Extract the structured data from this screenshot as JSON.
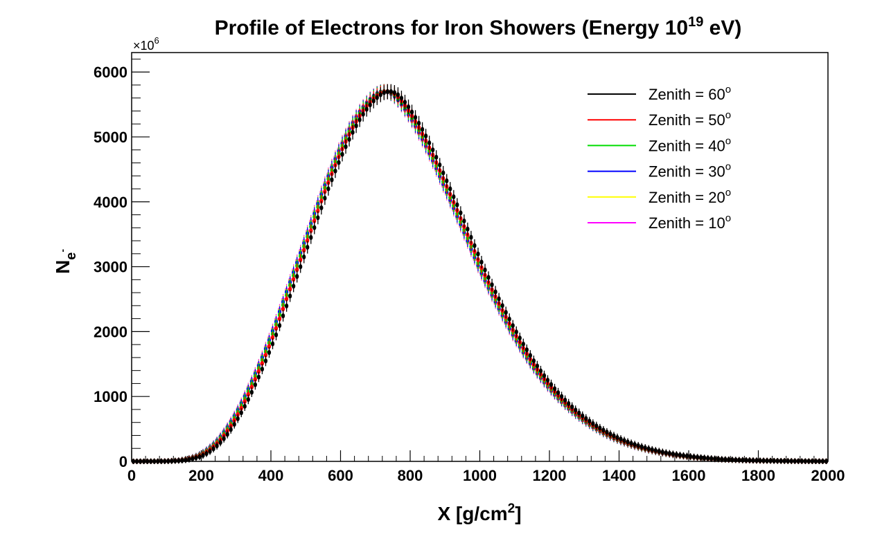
{
  "chart_data": {
    "type": "scatter",
    "title": {
      "main": "Profile of Electrons for Iron Showers (Energy 10",
      "sup": "19",
      "tail": " eV)"
    },
    "xlabel": {
      "main": "X [g/cm",
      "sup": "2",
      "tail": "]"
    },
    "ylabel": {
      "main": "N",
      "sub": "e",
      "subsup": "-"
    },
    "y_multiplier": {
      "main": "×10",
      "sup": "6"
    },
    "xlim": [
      0,
      2000
    ],
    "ylim": [
      0,
      6300
    ],
    "x_ticks": [
      0,
      200,
      400,
      600,
      800,
      1000,
      1200,
      1400,
      1600,
      1800,
      2000
    ],
    "x_tick_labels": [
      "0",
      "200",
      "400",
      "600",
      "800",
      "1000",
      "1200",
      "1400",
      "1600",
      "1800",
      "2000"
    ],
    "y_ticks": [
      0,
      1000,
      2000,
      3000,
      4000,
      5000,
      6000
    ],
    "y_tick_labels": [
      "0",
      "1000",
      "2000",
      "3000",
      "4000",
      "5000",
      "6000"
    ],
    "grid": false,
    "legend_position": "top-right",
    "x": [
      0,
      50,
      100,
      150,
      200,
      250,
      300,
      350,
      400,
      450,
      500,
      550,
      600,
      650,
      700,
      725,
      750,
      800,
      850,
      900,
      950,
      1000,
      1050,
      1100,
      1150,
      1200,
      1250,
      1300,
      1350,
      1400,
      1450,
      1500,
      1550,
      1600,
      1650,
      1700,
      1750,
      1800,
      1850,
      1900,
      1950,
      2000
    ],
    "series": [
      {
        "name": "Zenith = 60",
        "name_sup": "o",
        "color": "#000000",
        "x_shift": 15,
        "values": [
          0,
          1,
          5,
          30,
          120,
          350,
          750,
          1300,
          1950,
          2700,
          3450,
          4200,
          4850,
          5350,
          5650,
          5700,
          5650,
          5300,
          4800,
          4200,
          3580,
          2950,
          2400,
          1900,
          1470,
          1120,
          840,
          620,
          450,
          320,
          225,
          155,
          105,
          70,
          45,
          28,
          18,
          11,
          7,
          4,
          2,
          1
        ]
      },
      {
        "name": "Zenith = 50",
        "name_sup": "o",
        "color": "#ff0000",
        "x_shift": 8,
        "values": [
          0,
          1,
          5,
          30,
          120,
          350,
          750,
          1300,
          1950,
          2700,
          3450,
          4200,
          4850,
          5350,
          5650,
          5700,
          5650,
          5300,
          4800,
          4200,
          3580,
          2950,
          2400,
          1900,
          1470,
          1120,
          840,
          620,
          450,
          320,
          225,
          155,
          105,
          70,
          45,
          28,
          18,
          11,
          7,
          4,
          2,
          1
        ]
      },
      {
        "name": "Zenith = 40",
        "name_sup": "o",
        "color": "#00dd00",
        "x_shift": 4,
        "values": [
          0,
          1,
          5,
          30,
          120,
          350,
          750,
          1300,
          1950,
          2700,
          3450,
          4200,
          4850,
          5350,
          5650,
          5700,
          5650,
          5300,
          4800,
          4200,
          3580,
          2950,
          2400,
          1900,
          1470,
          1120,
          840,
          620,
          450,
          320,
          225,
          155,
          105,
          70,
          45,
          28,
          18,
          11,
          7,
          4,
          2,
          1
        ]
      },
      {
        "name": "Zenith = 30",
        "name_sup": "o",
        "color": "#0000ff",
        "x_shift": 1,
        "values": [
          0,
          1,
          5,
          30,
          120,
          350,
          750,
          1300,
          1950,
          2700,
          3450,
          4200,
          4850,
          5350,
          5650,
          5700,
          5650,
          5300,
          4800,
          4200,
          3580,
          2950,
          2400,
          1900,
          1470,
          1120,
          840,
          620,
          450,
          320,
          225,
          155,
          105,
          70,
          45,
          28,
          18,
          11,
          7,
          4,
          2,
          1
        ]
      },
      {
        "name": "Zenith = 20",
        "name_sup": "o",
        "color": "#ffff00",
        "x_shift": 0,
        "values": [
          0,
          1,
          5,
          30,
          120,
          350,
          750,
          1300,
          1950,
          2700,
          3450,
          4200,
          4850,
          5350,
          5650,
          5700,
          5650,
          5300,
          4800,
          4200,
          3580,
          2950,
          2400,
          1900,
          1470,
          1120,
          840,
          620,
          450,
          320,
          225,
          155,
          105,
          70,
          45,
          28,
          18,
          11,
          7,
          4,
          2,
          1
        ]
      },
      {
        "name": "Zenith = 10",
        "name_sup": "o",
        "color": "#ff00ff",
        "x_shift": -1,
        "values": [
          0,
          1,
          5,
          30,
          120,
          350,
          750,
          1300,
          1950,
          2700,
          3450,
          4200,
          4850,
          5350,
          5650,
          5700,
          5650,
          5300,
          4800,
          4200,
          3580,
          2950,
          2400,
          1900,
          1470,
          1120,
          840,
          620,
          450,
          320,
          225,
          155,
          105,
          70,
          45,
          28,
          18,
          11,
          7,
          4,
          2,
          1
        ]
      }
    ]
  }
}
